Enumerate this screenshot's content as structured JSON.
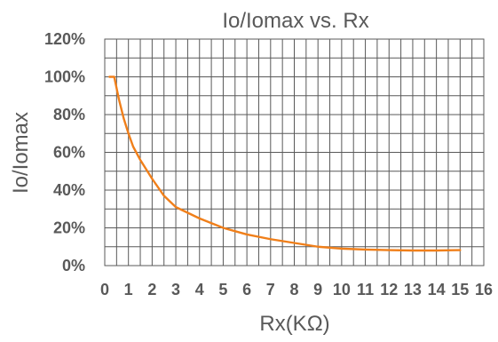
{
  "chart_data": {
    "type": "line",
    "title": "Io/Iomax vs. Rx",
    "xlabel": "Rx(KΩ)",
    "ylabel": "Io/Iomax",
    "xlim": [
      0,
      16
    ],
    "ylim": [
      0,
      1.2
    ],
    "grid": true,
    "legend": "none",
    "x_ticks": [
      "0",
      "1",
      "2",
      "3",
      "4",
      "5",
      "6",
      "7",
      "8",
      "9",
      "10",
      "11",
      "12",
      "13",
      "14",
      "15",
      "16"
    ],
    "y_ticks": [
      "0%",
      "20%",
      "40%",
      "60%",
      "80%",
      "100%",
      "120%"
    ],
    "x_minor_step": 0.5,
    "series": [
      {
        "color": "#f07f1a",
        "x": [
          0.2,
          0.4,
          0.6,
          0.8,
          1,
          1.2,
          1.5,
          2,
          2.5,
          3,
          4,
          5,
          6,
          7,
          8,
          9,
          10,
          11,
          12,
          13,
          14,
          15
        ],
        "y": [
          1.0,
          1.0,
          0.88,
          0.78,
          0.7,
          0.63,
          0.56,
          0.46,
          0.37,
          0.31,
          0.25,
          0.2,
          0.165,
          0.14,
          0.12,
          0.1,
          0.09,
          0.085,
          0.082,
          0.08,
          0.08,
          0.082
        ]
      }
    ]
  }
}
